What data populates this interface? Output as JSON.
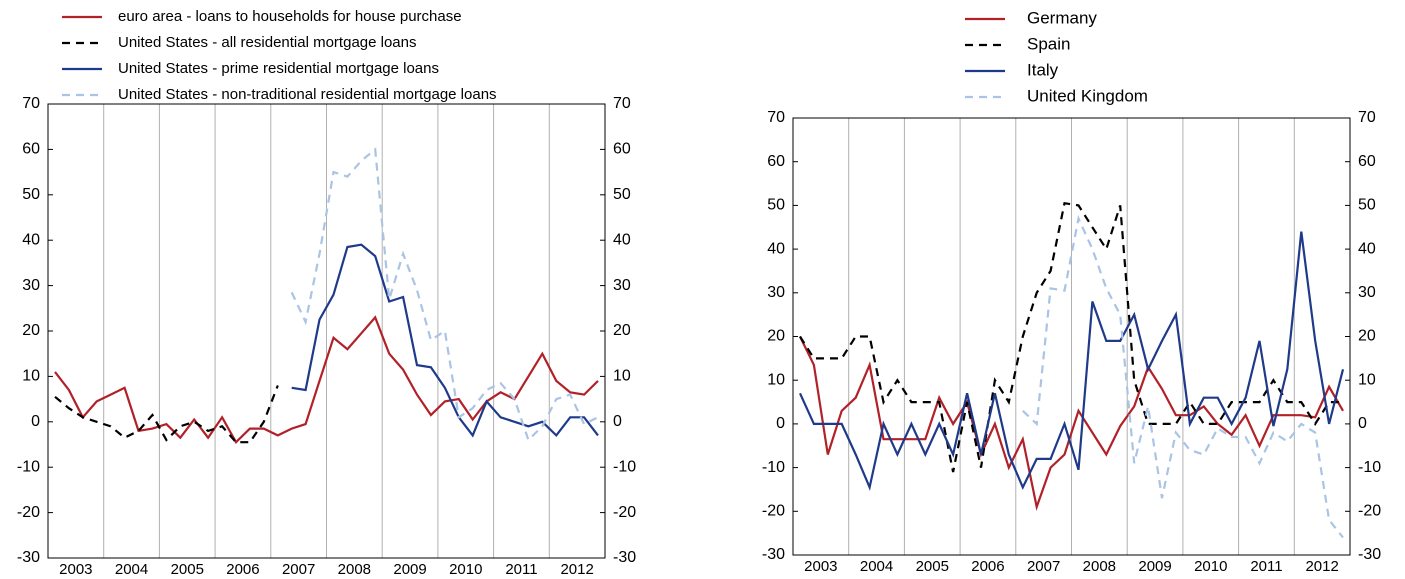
{
  "chart_data": [
    {
      "type": "line",
      "categories": [
        null,
        "2003",
        null,
        null,
        null,
        "2004",
        null,
        null,
        null,
        "2005",
        null,
        null,
        null,
        "2006",
        null,
        null,
        null,
        "2007",
        null,
        null,
        null,
        "2008",
        null,
        null,
        null,
        "2009",
        null,
        null,
        null,
        "2010",
        null,
        null,
        null,
        "2011",
        null,
        null,
        null,
        "2012",
        null,
        null
      ],
      "ylim": [
        -30,
        70
      ],
      "yticks": [
        -30,
        -20,
        -10,
        0,
        10,
        20,
        30,
        40,
        50,
        60,
        70
      ],
      "y2lim": [
        -30,
        70
      ],
      "y2ticks": [
        -30,
        -20,
        -10,
        0,
        10,
        20,
        30,
        40,
        50,
        60,
        70
      ],
      "legend": "top-left",
      "series": [
        {
          "name": "euro area - loans to households for house purchase",
          "color": "#b22028",
          "dash": false,
          "values": [
            11,
            7,
            1,
            4.5,
            6,
            7.5,
            -2,
            -1.5,
            -0.5,
            -3.5,
            0.5,
            -3.5,
            1,
            -4.5,
            -1.5,
            -1.5,
            -3,
            -1.5,
            -0.5,
            9,
            18.5,
            16,
            19.5,
            23,
            15,
            11.5,
            6,
            1.5,
            4.5,
            5,
            0.5,
            4.5,
            6.5,
            5,
            10,
            15,
            9,
            6.5,
            6,
            9
          ]
        },
        {
          "name": "United States - all residential mortgage loans",
          "color": "#000000",
          "dash": true,
          "values": [
            5.5,
            3,
            1,
            0,
            -1,
            -3.5,
            -2,
            1.5,
            -4,
            -1,
            0,
            -2,
            -1,
            -4.5,
            -4.5,
            0,
            8,
            null,
            null,
            null,
            null,
            null,
            null,
            null,
            null,
            null,
            null,
            null,
            null,
            null,
            null,
            null,
            null,
            null,
            null,
            null,
            null,
            null,
            null,
            null
          ]
        },
        {
          "name": "United States - prime residential mortgage loans",
          "color": "#1f3a8a",
          "dash": false,
          "values": [
            null,
            null,
            null,
            null,
            null,
            null,
            null,
            null,
            null,
            null,
            null,
            null,
            null,
            null,
            null,
            null,
            null,
            7.5,
            7,
            22.5,
            28,
            38.5,
            39,
            36.5,
            26.5,
            27.5,
            12.5,
            12,
            7.5,
            1,
            -3,
            4.5,
            1,
            0,
            -1,
            0,
            -3,
            1,
            1,
            -3
          ]
        },
        {
          "name": "United States - non-traditional residential mortgage loans",
          "color": "#a9c4e4",
          "dash": true,
          "values": [
            null,
            null,
            null,
            null,
            null,
            null,
            null,
            null,
            null,
            null,
            null,
            null,
            null,
            null,
            null,
            null,
            null,
            28.5,
            22,
            37,
            55,
            54,
            57.5,
            60,
            27,
            37,
            29,
            18,
            20,
            1,
            3,
            7,
            8.5,
            5,
            -4,
            -1,
            5,
            6,
            -0.5,
            1
          ]
        }
      ]
    },
    {
      "type": "line",
      "categories": [
        null,
        "2003",
        null,
        null,
        null,
        "2004",
        null,
        null,
        null,
        "2005",
        null,
        null,
        null,
        "2006",
        null,
        null,
        null,
        "2007",
        null,
        null,
        null,
        "2008",
        null,
        null,
        null,
        "2009",
        null,
        null,
        null,
        "2010",
        null,
        null,
        null,
        "2011",
        null,
        null,
        null,
        "2012",
        null,
        null
      ],
      "ylim": [
        -30,
        70
      ],
      "yticks": [
        -30,
        -20,
        -10,
        0,
        10,
        20,
        30,
        40,
        50,
        60,
        70
      ],
      "y2lim": [
        -30,
        70
      ],
      "y2ticks": [
        -30,
        -20,
        -10,
        0,
        10,
        20,
        30,
        40,
        50,
        60,
        70
      ],
      "legend": "top-center",
      "series": [
        {
          "name": "Germany",
          "color": "#b22028",
          "dash": false,
          "values": [
            20,
            13.5,
            -7,
            3,
            6,
            13.5,
            -3.5,
            -3.5,
            -3.5,
            -3.5,
            6,
            0,
            5,
            -7,
            0,
            -10,
            -3.5,
            -19,
            -10,
            -7,
            3,
            -2,
            -7,
            -0.5,
            4,
            13,
            8,
            2,
            2,
            4,
            0,
            -2.5,
            2,
            -5,
            2,
            2,
            2,
            1.5,
            8.5,
            3
          ]
        },
        {
          "name": "Spain",
          "color": "#000000",
          "dash": true,
          "values": [
            20,
            15,
            15,
            15,
            20,
            20,
            5,
            10,
            5,
            5,
            5,
            -11,
            5,
            -10,
            10,
            5,
            20,
            30,
            35,
            50.5,
            50,
            45,
            40,
            50,
            10,
            0,
            0,
            0,
            5,
            0,
            0,
            5,
            5,
            5,
            10,
            5,
            5,
            0,
            5,
            5
          ]
        },
        {
          "name": "Italy",
          "color": "#1f3a8a",
          "dash": false,
          "values": [
            7,
            0,
            0,
            0,
            -7,
            -14.5,
            0,
            -7,
            0,
            -7,
            0,
            -7,
            7,
            -7,
            7,
            -7,
            -14.5,
            -8,
            -8,
            0,
            -10.5,
            28,
            19,
            19,
            25,
            12.5,
            19,
            25,
            0,
            6,
            6,
            0,
            6,
            19,
            -0.5,
            12.5,
            44,
            19,
            0,
            12.5
          ]
        },
        {
          "name": "United Kingdom",
          "color": "#a9c4e4",
          "dash": true,
          "values": [
            null,
            null,
            null,
            null,
            null,
            null,
            null,
            null,
            null,
            null,
            null,
            null,
            null,
            null,
            null,
            null,
            3,
            0,
            31,
            30.5,
            47,
            40,
            31,
            25,
            -9,
            4,
            -17,
            -2,
            -6,
            -7,
            -1,
            -3,
            -3,
            -9,
            -2,
            -4,
            0,
            -2,
            -22,
            -26
          ]
        }
      ]
    }
  ]
}
